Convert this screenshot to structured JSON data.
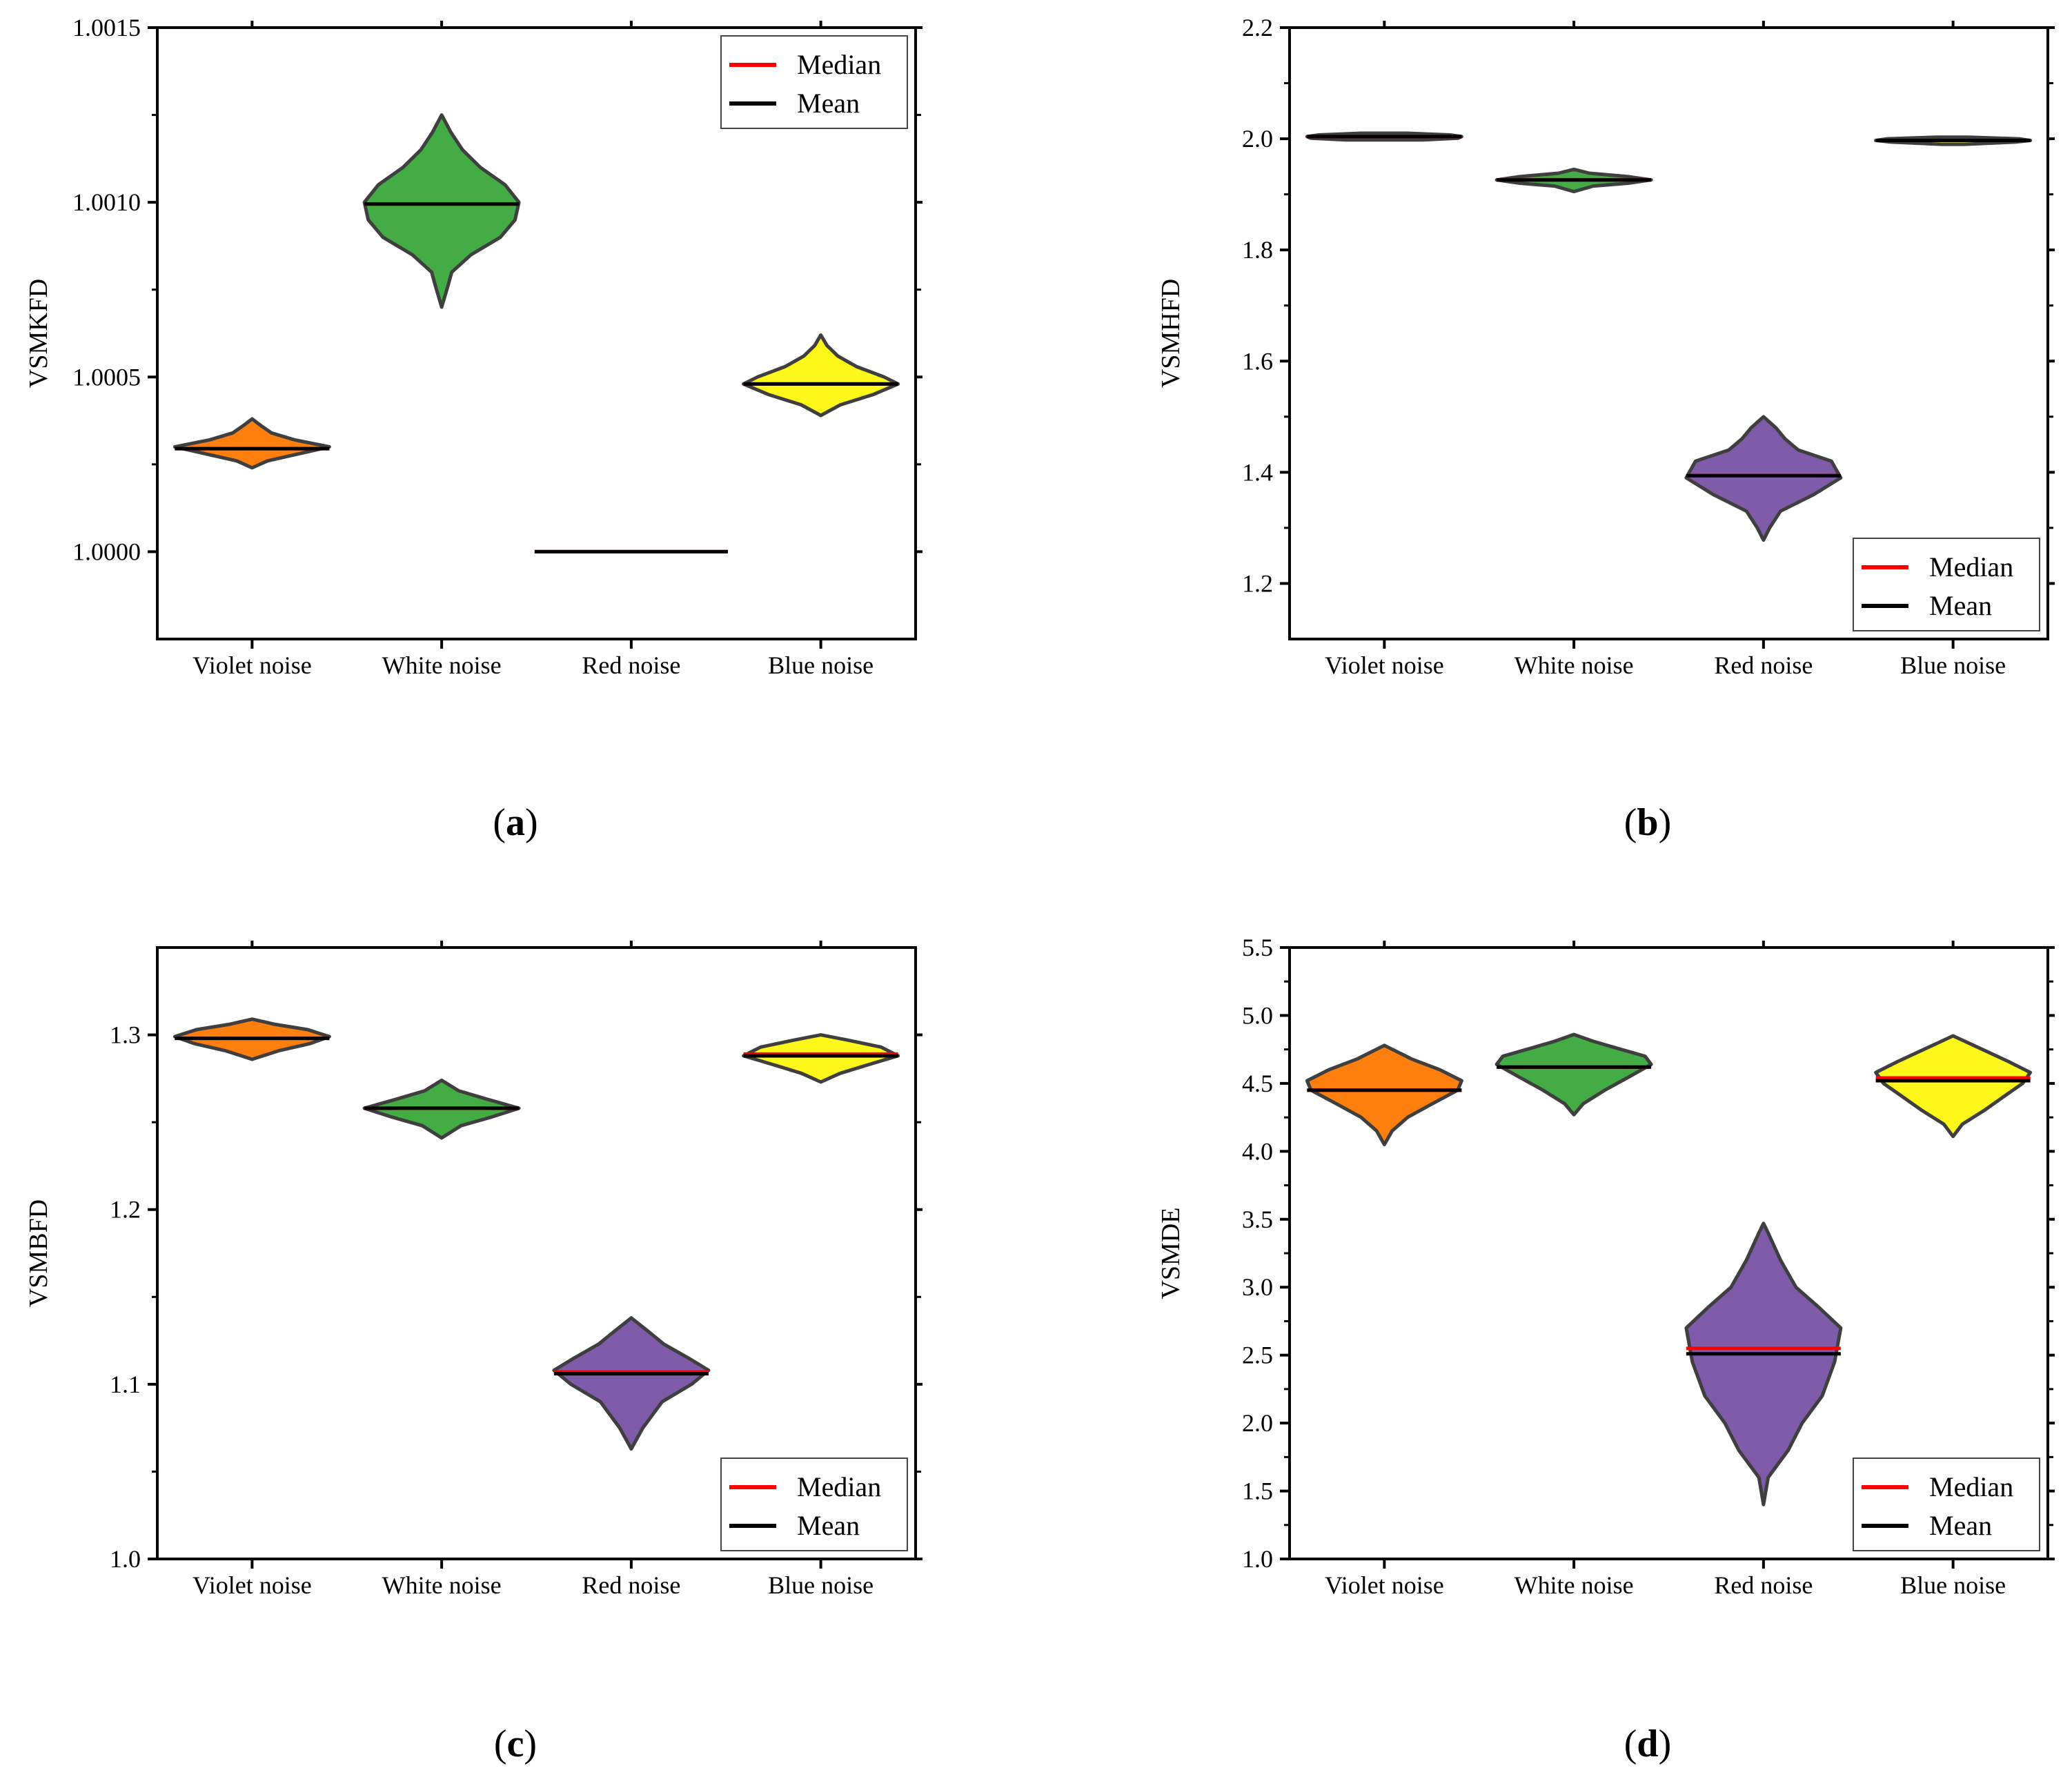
{
  "colors": {
    "violet_noise": "#ff7f0e",
    "white_noise": "#44ac44",
    "red_noise": "#7f5ba9",
    "blue_noise": "#fdf81a",
    "outline": "#3f3f3f",
    "median": "#ff0000",
    "mean": "#000000"
  },
  "legend": {
    "median": "Median",
    "mean": "Mean"
  },
  "chart_data": [
    {
      "panel": "a",
      "type": "violin",
      "ylabel": "VSMKFD",
      "categories": [
        "Violet noise",
        "White noise",
        "Red noise",
        "Blue noise"
      ],
      "ylim": [
        0.99975,
        1.0015
      ],
      "yticks": [
        1.0,
        1.0005,
        1.001,
        1.0015
      ],
      "ytick_labels": [
        "1.0000",
        "1.0005",
        "1.0010",
        "1.0015"
      ],
      "legend_position": "top-right",
      "series": [
        {
          "name": "Violet noise",
          "median": 1.000295,
          "mean": 1.000295,
          "min": 1.00024,
          "max": 1.00038,
          "shape": [
            [
              1.00024,
              0
            ],
            [
              1.00026,
              0.2
            ],
            [
              1.00028,
              0.6
            ],
            [
              1.0003,
              1
            ],
            [
              1.00032,
              0.55
            ],
            [
              1.00034,
              0.25
            ],
            [
              1.00036,
              0.12
            ],
            [
              1.00038,
              0
            ]
          ]
        },
        {
          "name": "White noise",
          "median": 1.000995,
          "mean": 1.000995,
          "min": 1.0007,
          "max": 1.00125,
          "shape": [
            [
              1.0007,
              0
            ],
            [
              1.00076,
              0.08
            ],
            [
              1.0008,
              0.13
            ],
            [
              1.00085,
              0.38
            ],
            [
              1.0009,
              0.76
            ],
            [
              1.00095,
              0.95
            ],
            [
              1.001,
              1
            ],
            [
              1.00105,
              0.82
            ],
            [
              1.0011,
              0.5
            ],
            [
              1.00115,
              0.27
            ],
            [
              1.0012,
              0.12
            ],
            [
              1.00125,
              0
            ]
          ]
        },
        {
          "name": "Red noise",
          "median": 1.0,
          "mean": 1.0,
          "min": 1.0,
          "max": 1.0,
          "shape": [
            [
              1.0,
              1
            ],
            [
              1.0,
              1
            ]
          ]
        },
        {
          "name": "Blue noise",
          "median": 1.00048,
          "mean": 1.00048,
          "min": 1.00039,
          "max": 1.00062,
          "shape": [
            [
              1.00039,
              0
            ],
            [
              1.00042,
              0.25
            ],
            [
              1.00045,
              0.68
            ],
            [
              1.00048,
              1
            ],
            [
              1.0005,
              0.82
            ],
            [
              1.00053,
              0.46
            ],
            [
              1.00056,
              0.22
            ],
            [
              1.00059,
              0.08
            ],
            [
              1.00062,
              0
            ]
          ]
        }
      ]
    },
    {
      "panel": "b",
      "type": "violin",
      "ylabel": "VSMHFD",
      "categories": [
        "Violet noise",
        "White noise",
        "Red noise",
        "Blue noise"
      ],
      "ylim": [
        1.1,
        2.2
      ],
      "yticks": [
        1.2,
        1.4,
        1.6,
        1.8,
        2.0,
        2.2
      ],
      "ytick_labels": [
        "1.2",
        "1.4",
        "1.6",
        "1.8",
        "2.0",
        "2.2"
      ],
      "legend_position": "bottom-right",
      "series": [
        {
          "name": "Violet noise",
          "median": 2.004,
          "mean": 2.004,
          "min": 1.998,
          "max": 2.01,
          "shape": [
            [
              1.998,
              0.5
            ],
            [
              2.001,
              0.95
            ],
            [
              2.004,
              1
            ],
            [
              2.007,
              0.85
            ],
            [
              2.01,
              0.3
            ]
          ]
        },
        {
          "name": "White noise",
          "median": 1.926,
          "mean": 1.926,
          "min": 1.905,
          "max": 1.945,
          "shape": [
            [
              1.905,
              0
            ],
            [
              1.915,
              0.25
            ],
            [
              1.92,
              0.7
            ],
            [
              1.926,
              1
            ],
            [
              1.932,
              0.7
            ],
            [
              1.938,
              0.2
            ],
            [
              1.945,
              0
            ]
          ]
        },
        {
          "name": "Red noise",
          "median": 1.394,
          "mean": 1.394,
          "min": 1.278,
          "max": 1.5,
          "shape": [
            [
              1.278,
              0
            ],
            [
              1.3,
              0.08
            ],
            [
              1.33,
              0.22
            ],
            [
              1.36,
              0.65
            ],
            [
              1.39,
              1
            ],
            [
              1.42,
              0.88
            ],
            [
              1.44,
              0.45
            ],
            [
              1.46,
              0.28
            ],
            [
              1.48,
              0.16
            ],
            [
              1.5,
              0
            ]
          ]
        },
        {
          "name": "Blue noise",
          "median": 1.997,
          "mean": 1.997,
          "min": 1.99,
          "max": 2.003,
          "shape": [
            [
              1.99,
              0.15
            ],
            [
              1.994,
              0.8
            ],
            [
              1.997,
              1
            ],
            [
              2.0,
              0.85
            ],
            [
              2.003,
              0.2
            ]
          ]
        }
      ]
    },
    {
      "panel": "c",
      "type": "violin",
      "ylabel": "VSMBFD",
      "categories": [
        "Violet noise",
        "White noise",
        "Red noise",
        "Blue noise"
      ],
      "ylim": [
        1.0,
        1.35
      ],
      "yticks": [
        1.0,
        1.1,
        1.2,
        1.3
      ],
      "ytick_labels": [
        "1.0",
        "1.1",
        "1.2",
        "1.3"
      ],
      "legend_position": "bottom-right",
      "series": [
        {
          "name": "Violet noise",
          "median": 1.298,
          "mean": 1.298,
          "min": 1.286,
          "max": 1.309,
          "shape": [
            [
              1.286,
              0
            ],
            [
              1.291,
              0.35
            ],
            [
              1.295,
              0.75
            ],
            [
              1.299,
              1
            ],
            [
              1.303,
              0.72
            ],
            [
              1.306,
              0.3
            ],
            [
              1.309,
              0
            ]
          ]
        },
        {
          "name": "White noise",
          "median": 1.258,
          "mean": 1.258,
          "min": 1.241,
          "max": 1.274,
          "shape": [
            [
              1.241,
              0
            ],
            [
              1.248,
              0.25
            ],
            [
              1.253,
              0.65
            ],
            [
              1.258,
              1
            ],
            [
              1.263,
              0.6
            ],
            [
              1.268,
              0.22
            ],
            [
              1.274,
              0
            ]
          ]
        },
        {
          "name": "Red noise",
          "median": 1.107,
          "mean": 1.106,
          "min": 1.063,
          "max": 1.138,
          "shape": [
            [
              1.063,
              0
            ],
            [
              1.075,
              0.15
            ],
            [
              1.09,
              0.4
            ],
            [
              1.1,
              0.78
            ],
            [
              1.108,
              1
            ],
            [
              1.115,
              0.74
            ],
            [
              1.123,
              0.42
            ],
            [
              1.131,
              0.2
            ],
            [
              1.138,
              0
            ]
          ]
        },
        {
          "name": "Blue noise",
          "median": 1.289,
          "mean": 1.288,
          "min": 1.273,
          "max": 1.3,
          "shape": [
            [
              1.273,
              0
            ],
            [
              1.278,
              0.25
            ],
            [
              1.283,
              0.62
            ],
            [
              1.288,
              1
            ],
            [
              1.293,
              0.78
            ],
            [
              1.297,
              0.35
            ],
            [
              1.3,
              0
            ]
          ]
        }
      ]
    },
    {
      "panel": "d",
      "type": "violin",
      "ylabel": "VSMDE",
      "categories": [
        "Violet noise",
        "White noise",
        "Red noise",
        "Blue noise"
      ],
      "ylim": [
        1.0,
        5.5
      ],
      "yticks": [
        1.0,
        1.5,
        2.0,
        2.5,
        3.0,
        3.5,
        4.0,
        4.5,
        5.0,
        5.5
      ],
      "ytick_labels": [
        "1.0",
        "1.5",
        "2.0",
        "2.5",
        "3.0",
        "3.5",
        "4.0",
        "4.5",
        "5.0",
        "5.5"
      ],
      "legend_position": "bottom-right",
      "series": [
        {
          "name": "Violet noise",
          "median": 4.45,
          "mean": 4.45,
          "min": 4.05,
          "max": 4.78,
          "shape": [
            [
              4.05,
              0
            ],
            [
              4.15,
              0.1
            ],
            [
              4.25,
              0.3
            ],
            [
              4.35,
              0.62
            ],
            [
              4.45,
              0.95
            ],
            [
              4.52,
              1
            ],
            [
              4.6,
              0.72
            ],
            [
              4.68,
              0.35
            ],
            [
              4.78,
              0
            ]
          ]
        },
        {
          "name": "White noise",
          "median": 4.62,
          "mean": 4.62,
          "min": 4.27,
          "max": 4.86,
          "shape": [
            [
              4.27,
              0
            ],
            [
              4.35,
              0.12
            ],
            [
              4.45,
              0.4
            ],
            [
              4.55,
              0.72
            ],
            [
              4.64,
              1
            ],
            [
              4.7,
              0.92
            ],
            [
              4.76,
              0.55
            ],
            [
              4.81,
              0.25
            ],
            [
              4.86,
              0
            ]
          ]
        },
        {
          "name": "Red noise",
          "median": 2.55,
          "mean": 2.51,
          "min": 1.4,
          "max": 3.47,
          "shape": [
            [
              1.4,
              0
            ],
            [
              1.6,
              0.06
            ],
            [
              1.8,
              0.32
            ],
            [
              2.0,
              0.5
            ],
            [
              2.2,
              0.76
            ],
            [
              2.45,
              0.92
            ],
            [
              2.7,
              1
            ],
            [
              2.85,
              0.72
            ],
            [
              3.0,
              0.42
            ],
            [
              3.2,
              0.22
            ],
            [
              3.4,
              0.06
            ],
            [
              3.47,
              0
            ]
          ]
        },
        {
          "name": "Blue noise",
          "median": 4.54,
          "mean": 4.52,
          "min": 4.11,
          "max": 4.85,
          "shape": [
            [
              4.11,
              0
            ],
            [
              4.2,
              0.12
            ],
            [
              4.3,
              0.4
            ],
            [
              4.42,
              0.7
            ],
            [
              4.5,
              0.9
            ],
            [
              4.58,
              1
            ],
            [
              4.66,
              0.72
            ],
            [
              4.75,
              0.38
            ],
            [
              4.85,
              0
            ]
          ]
        }
      ]
    }
  ],
  "panel_labels": [
    "a",
    "b",
    "c",
    "d"
  ]
}
